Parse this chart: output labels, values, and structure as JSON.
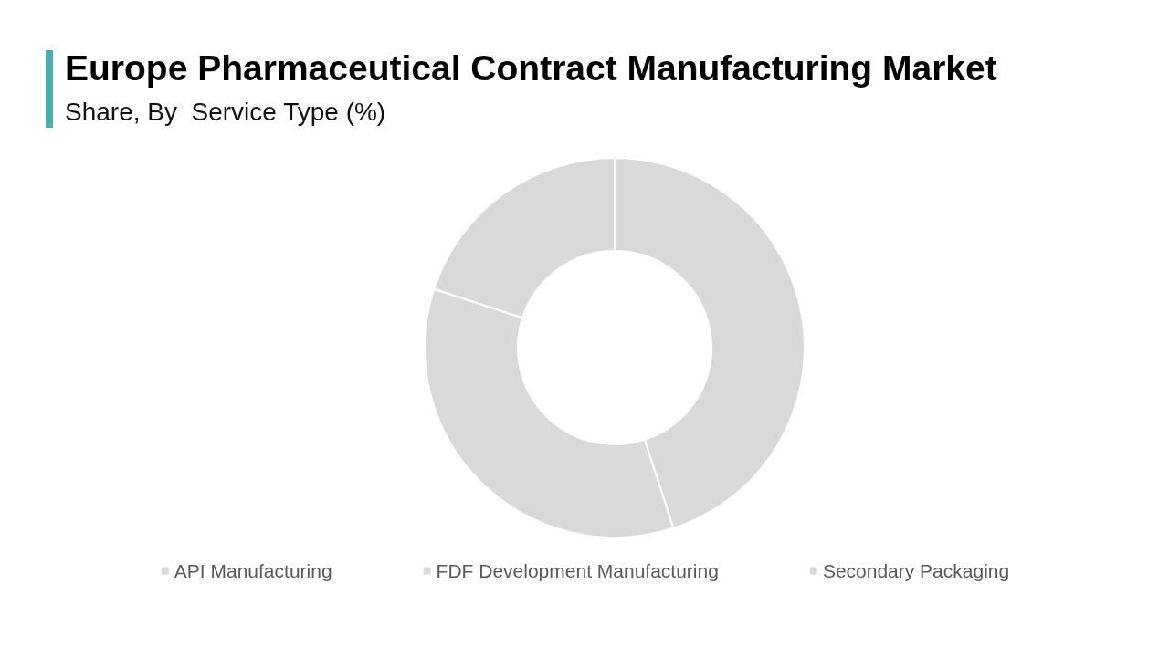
{
  "chart_data": {
    "type": "donut",
    "title": "Europe Pharmaceutical Contract Manufacturing Market",
    "subtitle": "Share, By  Service Type (%)",
    "categories": [
      "API Manufacturing",
      "FDF Development Manufacturing",
      "Secondary Packaging"
    ],
    "values": [
      45,
      35,
      20
    ],
    "colors": [
      "#d9d9d9",
      "#d9d9d9",
      "#d9d9d9"
    ],
    "legend": "bottom"
  }
}
